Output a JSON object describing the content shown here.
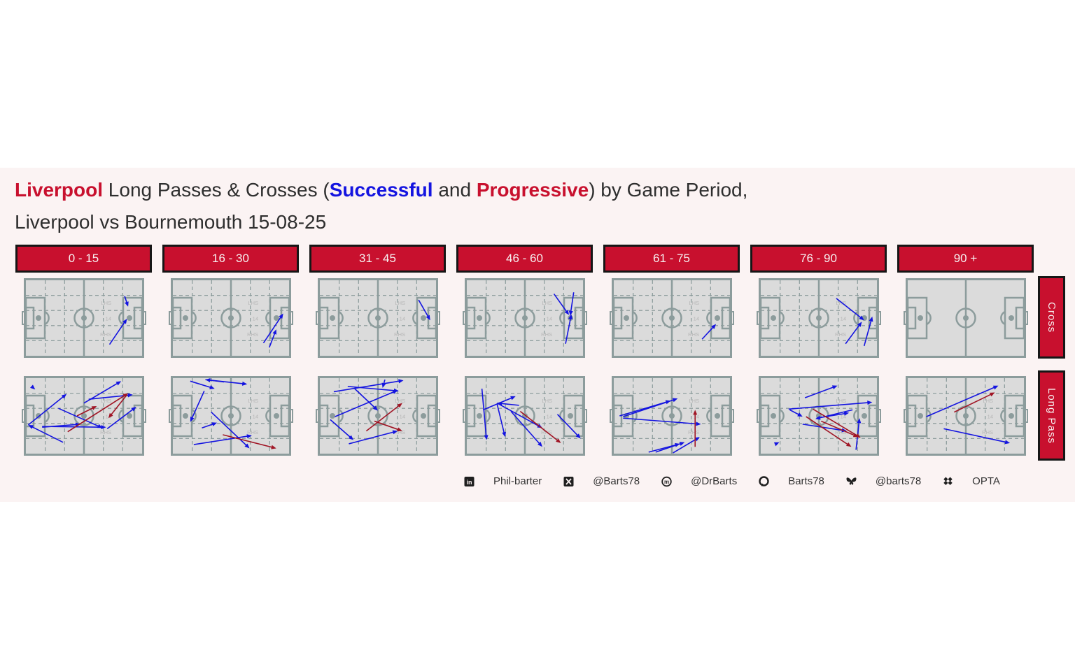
{
  "page": {
    "background": "#FFFFFF",
    "panel_background": "#FBF3F3"
  },
  "header": {
    "title_segments": [
      {
        "text": "Liverpool",
        "color": "#C8102E",
        "bold": true
      },
      {
        "text": " Long Passes & Crosses (",
        "color": "#2E2E2E",
        "bold": false
      },
      {
        "text": "Successful",
        "color": "#1414E0",
        "bold": true
      },
      {
        "text": " and ",
        "color": "#2E2E2E",
        "bold": false
      },
      {
        "text": "Progressive",
        "color": "#C8102E",
        "bold": true
      },
      {
        "text": ") by Game Period,",
        "color": "#2E2E2E",
        "bold": false
      }
    ],
    "subtitle": "Liverpool vs Bournemouth 15-08-25"
  },
  "chart_data": {
    "type": "scatter",
    "subtype": "football-pass-map-small-multiples",
    "title": "Liverpool Long Passes & Crosses (Successful and Progressive) by Game Period, Liverpool vs Bournemouth 15-08-25",
    "periods": [
      "0 - 15",
      "16 - 30",
      "31 - 45",
      "46 - 60",
      "61 - 75",
      "76 - 90",
      "90 +"
    ],
    "row_labels": [
      "Cross",
      "Long Pass"
    ],
    "pitch_zone_labels": [
      "LHS",
      "14",
      "RHS"
    ],
    "legend": {
      "successful": "#1414E0",
      "progressive": "#A01525"
    },
    "pass_format": [
      "x1_pct",
      "y1_pct",
      "x2_pct",
      "y2_pct",
      "s=successful(blue) p=progressive(red)"
    ],
    "rows": [
      {
        "label": "Cross",
        "pitches": [
          {
            "zones": true,
            "passes": [
              [
                85,
                21,
                88,
                35,
                "s"
              ],
              [
                72,
                85,
                87,
                51,
                "s"
              ]
            ]
          },
          {
            "zones": true,
            "passes": [
              [
                78,
                83,
                95,
                44,
                "s"
              ],
              [
                83,
                89,
                89,
                65,
                "s"
              ]
            ]
          },
          {
            "zones": true,
            "passes": [
              [
                85,
                26,
                95,
                53,
                "s"
              ]
            ]
          },
          {
            "zones": true,
            "passes": [
              [
                75,
                18,
                88,
                46,
                "s"
              ],
              [
                85,
                84,
                90,
                45,
                "s"
              ],
              [
                92,
                16,
                89,
                47,
                "s"
              ]
            ]
          },
          {
            "zones": true,
            "passes": [
              [
                76,
                78,
                88,
                58,
                "s"
              ]
            ]
          },
          {
            "zones": true,
            "passes": [
              [
                65,
                24,
                89,
                53,
                "s"
              ],
              [
                73,
                84,
                87,
                55,
                "s"
              ],
              [
                89,
                87,
                96,
                48,
                "s"
              ]
            ]
          },
          {
            "zones": false,
            "passes": []
          }
        ]
      },
      {
        "label": "Long Pass",
        "pitches": [
          {
            "zones": true,
            "passes": [
              [
                5,
                11,
                8,
                15,
                "s"
              ],
              [
                2,
                62,
                35,
                21,
                "s"
              ],
              [
                32,
                85,
                2,
                62,
                "s"
              ],
              [
                50,
                33,
                82,
                4,
                "s"
              ],
              [
                54,
                28,
                92,
                22,
                "s"
              ],
              [
                14,
                65,
                47,
                61,
                "s"
              ],
              [
                14,
                64,
                69,
                65,
                "s"
              ],
              [
                28,
                40,
                66,
                66,
                "s"
              ],
              [
                70,
                67,
                95,
                38,
                "s"
              ],
              [
                36,
                71,
                88,
                20,
                "p"
              ],
              [
                44,
                50,
                61,
                37,
                "p"
              ],
              [
                87,
                22,
                71,
                53,
                "p"
              ]
            ]
          },
          {
            "zones": true,
            "passes": [
              [
                15,
                4,
                36,
                14,
                "s"
              ],
              [
                44,
                5,
                28,
                2,
                "s"
              ],
              [
                28,
                2,
                64,
                8,
                "s"
              ],
              [
                27,
                17,
                15,
                58,
                "s"
              ],
              [
                25,
                66,
                38,
                59,
                "s"
              ],
              [
                33,
                45,
                66,
                93,
                "s"
              ],
              [
                18,
                88,
                68,
                76,
                "s"
              ],
              [
                43,
                75,
                89,
                93,
                "p"
              ]
            ]
          },
          {
            "zones": true,
            "passes": [
              [
                12,
                18,
                72,
                3,
                "s"
              ],
              [
                56,
                2,
                54,
                13,
                "s"
              ],
              [
                24,
                11,
                68,
                17,
                "s"
              ],
              [
                30,
                14,
                50,
                43,
                "s"
              ],
              [
                13,
                51,
                67,
                16,
                "s"
              ],
              [
                9,
                55,
                29,
                82,
                "s"
              ],
              [
                25,
                87,
                67,
                70,
                "s"
              ],
              [
                40,
                70,
                71,
                33,
                "p"
              ],
              [
                47,
                57,
                71,
                70,
                "p"
              ]
            ]
          },
          {
            "zones": true,
            "passes": [
              [
                13,
                14,
                17,
                82,
                "s"
              ],
              [
                14,
                42,
                42,
                24,
                "s"
              ],
              [
                45,
                36,
                26,
                33,
                "s"
              ],
              [
                26,
                34,
                33,
                78,
                "s"
              ],
              [
                26,
                33,
                65,
                66,
                "s"
              ],
              [
                38,
                44,
                65,
                91,
                "s"
              ],
              [
                78,
                48,
                98,
                80,
                "s"
              ],
              [
                46,
                44,
                81,
                86,
                "p"
              ]
            ]
          },
          {
            "zones": true,
            "passes": [
              [
                5,
                50,
                49,
                30,
                "s"
              ],
              [
                8,
                51,
                55,
                27,
                "s"
              ],
              [
                8,
                53,
                75,
                61,
                "s"
              ],
              [
                30,
                98,
                57,
                87,
                "s"
              ],
              [
                36,
                98,
                61,
                85,
                "s"
              ],
              [
                51,
                99,
                74,
                78,
                "s"
              ],
              [
                70,
                91,
                70,
                42,
                "p"
              ]
            ]
          },
          {
            "zones": true,
            "passes": [
              [
                38,
                26,
                66,
                10,
                "s"
              ],
              [
                24,
                41,
                96,
                32,
                "s"
              ],
              [
                25,
                42,
                36,
                51,
                "s"
              ],
              [
                79,
                42,
                47,
                54,
                "s"
              ],
              [
                48,
                53,
                76,
                46,
                "s"
              ],
              [
                36,
                61,
                74,
                70,
                "s"
              ],
              [
                82,
                95,
                85,
                53,
                "s"
              ],
              [
                13,
                87,
                16,
                85,
                "s"
              ],
              [
                45,
                41,
                86,
                79,
                "p"
              ],
              [
                39,
                51,
                78,
                91,
                "p"
              ],
              [
                52,
                57,
                84,
                78,
                "p"
              ]
            ]
          },
          {
            "zones": true,
            "passes": [
              [
                16,
                51,
                78,
                10,
                "s"
              ],
              [
                31,
                67,
                88,
                86,
                "s"
              ],
              [
                40,
                45,
                75,
                19,
                "p"
              ]
            ]
          }
        ]
      }
    ]
  },
  "footer": {
    "items": [
      {
        "icon": "linkedin-icon",
        "label": "Phil-barter"
      },
      {
        "icon": "x-icon",
        "label": "@Barts78"
      },
      {
        "icon": "mastodon-icon",
        "label": "@DrBarts"
      },
      {
        "icon": "github-icon",
        "label": "Barts78"
      },
      {
        "icon": "bluesky-icon",
        "label": "@barts78"
      },
      {
        "icon": "opta-icon",
        "label": "OPTA"
      }
    ]
  },
  "colors": {
    "accent_red": "#C8102E",
    "successful_blue": "#1414E0",
    "progressive_red": "#A01525",
    "pitch_fill": "#DBDBDB",
    "pitch_line": "#8C9C9C",
    "zone_label": "#B5B5B5",
    "footer_text": "#333333"
  }
}
